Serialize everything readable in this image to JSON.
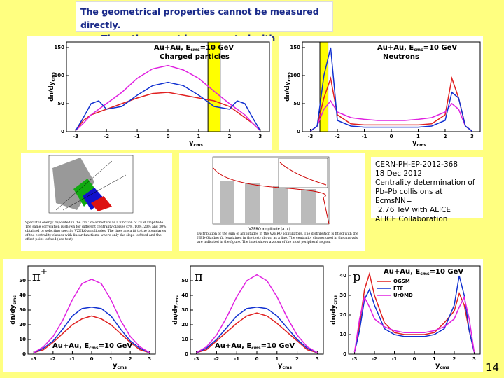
{
  "header": {
    "line1": "The geometrical properties cannot be measured directly.",
    "line2": "Thus, they must be connected with observailities."
  },
  "infobox": [
    "CERN-PH-EP-2012-368",
    "18 Dec 2012",
    "Centrality determination of",
    "Pb–Pb collisions at EcmsNN=",
    "2.76 TeV with ALICE",
    "ALICE Collaboration"
  ],
  "figures": {
    "zdc_caption": "Spectator energy deposited in the ZDC calorimeters as a function of ZEM amplitude. The same correlation is shown for different centrality classes (5%, 10%, 20% and 30%) obtained by selecting specific VZERO amplitudes. The lines are a fit to the boundaries of the centrality classes with linear functions, where only the slope is fitted and the offset point is fixed (see text).",
    "vzero_caption": "Distribution of the sum of amplitudes in the VZERO scintillators. The distribution is fitted with the NBD-Glauber fit (explained in the text) shown as a line. The centrality classes used in the analysis are indicated in the figure. The inset shows a zoom of the most peripheral region.",
    "vzero_xlabel": "VZERO amplitude (a.u.)"
  },
  "page_number": "14",
  "chart_data": [
    {
      "type": "line",
      "title": [
        "Au+Au, E",
        "cms",
        "=10 GeV"
      ],
      "subtitle": "Charged particles",
      "ylabel": [
        "dn/dy",
        "cms"
      ],
      "xlabel": [
        "y",
        "cms"
      ],
      "title_position": "top",
      "highlight": [
        1.3,
        1.7
      ],
      "highlight_color": "#ffff00",
      "x": [
        -3,
        -2.75,
        -2.5,
        -2.25,
        -2,
        -1.5,
        -1,
        -0.5,
        0,
        0.5,
        1,
        1.5,
        2,
        2.25,
        2.5,
        2.75,
        3
      ],
      "xlim": [
        -3.3,
        3.3
      ],
      "xticks": [
        -3,
        -2,
        -1,
        0,
        1,
        2,
        3
      ],
      "ylim": [
        0,
        160
      ],
      "yticks": [
        0,
        50,
        100,
        150
      ],
      "series": [
        {
          "color": "#e02020",
          "values": [
            2,
            20,
            30,
            35,
            40,
            50,
            60,
            68,
            70,
            65,
            60,
            55,
            45,
            35,
            25,
            15,
            2
          ]
        },
        {
          "color": "#e020e0",
          "values": [
            2,
            15,
            30,
            40,
            50,
            70,
            95,
            112,
            118,
            110,
            95,
            72,
            50,
            40,
            30,
            15,
            2
          ]
        },
        {
          "color": "#1030d0",
          "values": [
            2,
            25,
            50,
            55,
            40,
            45,
            65,
            82,
            88,
            82,
            65,
            45,
            40,
            55,
            50,
            25,
            2
          ]
        }
      ]
    },
    {
      "type": "line",
      "title": [
        "Au+Au, E",
        "cms",
        "=10 GeV"
      ],
      "subtitle": "Neutrons",
      "ylabel": [
        "dn/dy",
        "cms"
      ],
      "xlabel": [
        "y",
        "cms"
      ],
      "title_position": "top",
      "highlight": [
        -2.65,
        -2.35
      ],
      "highlight_color": "#ffff00",
      "x": [
        -3,
        -2.75,
        -2.5,
        -2.25,
        -2,
        -1.5,
        -1,
        -0.5,
        0,
        0.5,
        1,
        1.5,
        2,
        2.25,
        2.5,
        2.75,
        3
      ],
      "xlim": [
        -3.3,
        3.3
      ],
      "xticks": [
        -3,
        -2,
        -1,
        0,
        1,
        2,
        3
      ],
      "ylim": [
        0,
        160
      ],
      "yticks": [
        0,
        50,
        100,
        150
      ],
      "series": [
        {
          "color": "#e02020",
          "values": [
            1,
            10,
            60,
            95,
            30,
            14,
            12,
            12,
            12,
            12,
            12,
            14,
            30,
            95,
            60,
            10,
            1
          ]
        },
        {
          "color": "#e020e0",
          "values": [
            1,
            10,
            40,
            55,
            35,
            25,
            22,
            20,
            20,
            20,
            22,
            25,
            35,
            50,
            40,
            10,
            1
          ]
        },
        {
          "color": "#1030d0",
          "values": [
            1,
            10,
            100,
            150,
            20,
            10,
            8,
            8,
            8,
            8,
            8,
            10,
            20,
            70,
            60,
            10,
            1
          ]
        }
      ]
    },
    {
      "type": "line",
      "title": [
        "Au+Au, E",
        "cms",
        "=10 GeV"
      ],
      "label": "π",
      "label_sup": "+",
      "ylabel": [
        "dn/dy",
        "cms"
      ],
      "xlabel": [
        "y",
        "cms"
      ],
      "title_position": "bottom",
      "x": [
        -3,
        -2.5,
        -2,
        -1.5,
        -1,
        -0.5,
        0,
        0.5,
        1,
        1.5,
        2,
        2.5,
        3
      ],
      "xlim": [
        -3.3,
        3.3
      ],
      "xticks": [
        -3,
        -2,
        -1,
        0,
        1,
        2,
        3
      ],
      "ylim": [
        0,
        60
      ],
      "yticks": [
        0,
        10,
        20,
        30,
        40,
        50
      ],
      "series": [
        {
          "color": "#e02020",
          "values": [
            1,
            3,
            8,
            14,
            20,
            24,
            26,
            24,
            20,
            14,
            8,
            3,
            1
          ]
        },
        {
          "color": "#1030d0",
          "values": [
            1,
            4,
            9,
            17,
            26,
            31,
            32,
            31,
            26,
            17,
            9,
            4,
            1
          ]
        },
        {
          "color": "#e020e0",
          "values": [
            1,
            5,
            12,
            23,
            37,
            48,
            51,
            48,
            37,
            23,
            12,
            5,
            1
          ]
        }
      ]
    },
    {
      "type": "line",
      "title": [
        "Au+Au, E",
        "cms",
        "=10 GeV"
      ],
      "label": "π",
      "label_sup": "-",
      "ylabel": [
        "dn/dy",
        "cms"
      ],
      "xlabel": [
        "y",
        "cms"
      ],
      "title_position": "bottom",
      "x": [
        -3,
        -2.5,
        -2,
        -1.5,
        -1,
        -0.5,
        0,
        0.5,
        1,
        1.5,
        2,
        2.5,
        3
      ],
      "xlim": [
        -3.3,
        3.3
      ],
      "xticks": [
        -3,
        -2,
        -1,
        0,
        1,
        2,
        3
      ],
      "ylim": [
        0,
        60
      ],
      "yticks": [
        0,
        10,
        20,
        30,
        40,
        50
      ],
      "series": [
        {
          "color": "#e02020",
          "values": [
            1,
            3,
            9,
            15,
            21,
            26,
            28,
            26,
            21,
            15,
            9,
            3,
            1
          ]
        },
        {
          "color": "#1030d0",
          "values": [
            1,
            4,
            10,
            18,
            26,
            31,
            32,
            31,
            26,
            18,
            10,
            4,
            1
          ]
        },
        {
          "color": "#e020e0",
          "values": [
            1,
            5,
            13,
            25,
            39,
            50,
            54,
            50,
            39,
            25,
            13,
            5,
            1
          ]
        }
      ]
    },
    {
      "type": "line",
      "title": [
        "Au+Au, E",
        "cms",
        "=10 GeV"
      ],
      "label": "p",
      "ylabel": [
        "dn/dy",
        "cms"
      ],
      "xlabel": [
        "y",
        "cms"
      ],
      "title_position": "top",
      "legend": true,
      "x": [
        -3,
        -2.75,
        -2.5,
        -2.25,
        -2,
        -1.5,
        -1,
        -0.5,
        0,
        0.5,
        1,
        1.5,
        2,
        2.25,
        2.5,
        2.75,
        3
      ],
      "xlim": [
        -3.3,
        3.3
      ],
      "xticks": [
        -3,
        -2,
        -1,
        0,
        1,
        2,
        3
      ],
      "ylim": [
        0,
        45
      ],
      "yticks": [
        0,
        10,
        20,
        30,
        40
      ],
      "series": [
        {
          "name": "QGSM",
          "color": "#e02020",
          "values": [
            1,
            15,
            33,
            41,
            30,
            16,
            11,
            10,
            10,
            10,
            11,
            16,
            22,
            31,
            25,
            12,
            1
          ]
        },
        {
          "name": "FTF",
          "color": "#1030d0",
          "values": [
            1,
            12,
            28,
            33,
            25,
            13,
            10,
            9,
            9,
            9,
            10,
            13,
            25,
            40,
            30,
            12,
            1
          ]
        },
        {
          "name": "UrQMD",
          "color": "#e020e0",
          "values": [
            1,
            18,
            29,
            24,
            18,
            14,
            12,
            11,
            11,
            11,
            12,
            14,
            18,
            24,
            29,
            18,
            1
          ]
        }
      ]
    }
  ]
}
